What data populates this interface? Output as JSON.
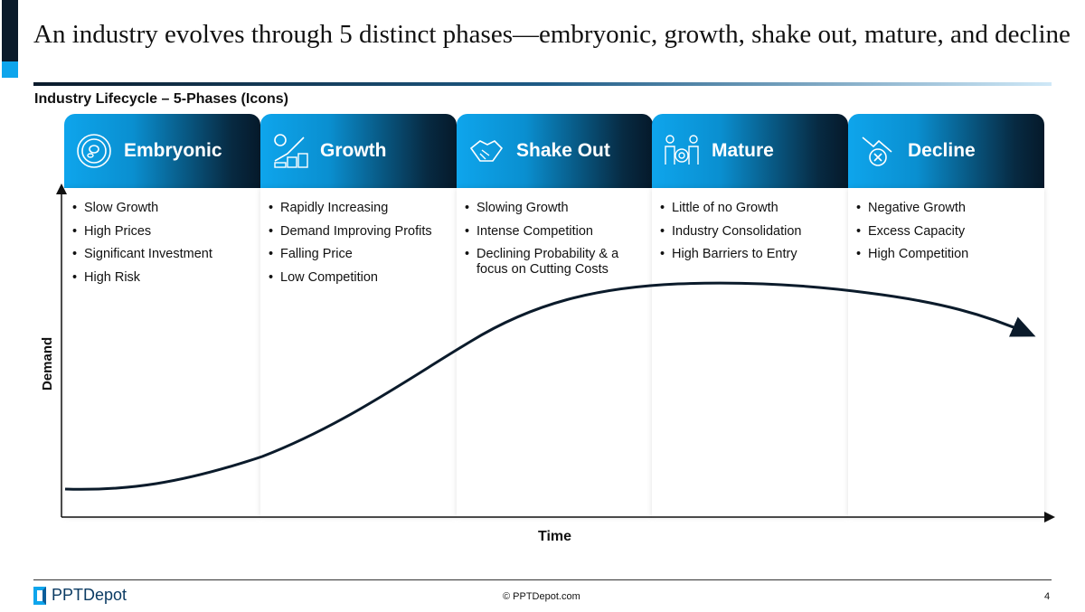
{
  "title": "An industry evolves through 5 distinct phases—embryonic, growth, shake out, mature, and decline",
  "subtitle": "Industry Lifecycle – 5-Phases (Icons)",
  "phases": [
    {
      "name": "Embryonic",
      "icon": "petri-dish-icon",
      "bullets": [
        "Slow Growth",
        "High Prices",
        "Significant Investment",
        "High Risk"
      ]
    },
    {
      "name": "Growth",
      "icon": "growth-coins-icon",
      "bullets": [
        "Rapidly Increasing",
        "Demand Improving Profits",
        "Falling Price",
        "Low Competition"
      ]
    },
    {
      "name": "Shake Out",
      "icon": "handshake-icon",
      "bullets": [
        "Slowing Growth",
        "Intense Competition",
        "Declining Probability & a focus on Cutting Costs"
      ]
    },
    {
      "name": "Mature",
      "icon": "team-target-icon",
      "bullets": [
        "Little of no Growth",
        "Industry Consolidation",
        "High Barriers to Entry"
      ]
    },
    {
      "name": "Decline",
      "icon": "decline-icon",
      "bullets": [
        "Negative Growth",
        "Excess Capacity",
        "High Competition"
      ]
    }
  ],
  "axes": {
    "y": "Demand",
    "x": "Time"
  },
  "footer": {
    "brand": "PPTDepot",
    "copyright": "© PPTDepot.com",
    "page": "4"
  },
  "colors": {
    "accent": "#0ea5ec",
    "dark": "#0b1b2b"
  }
}
